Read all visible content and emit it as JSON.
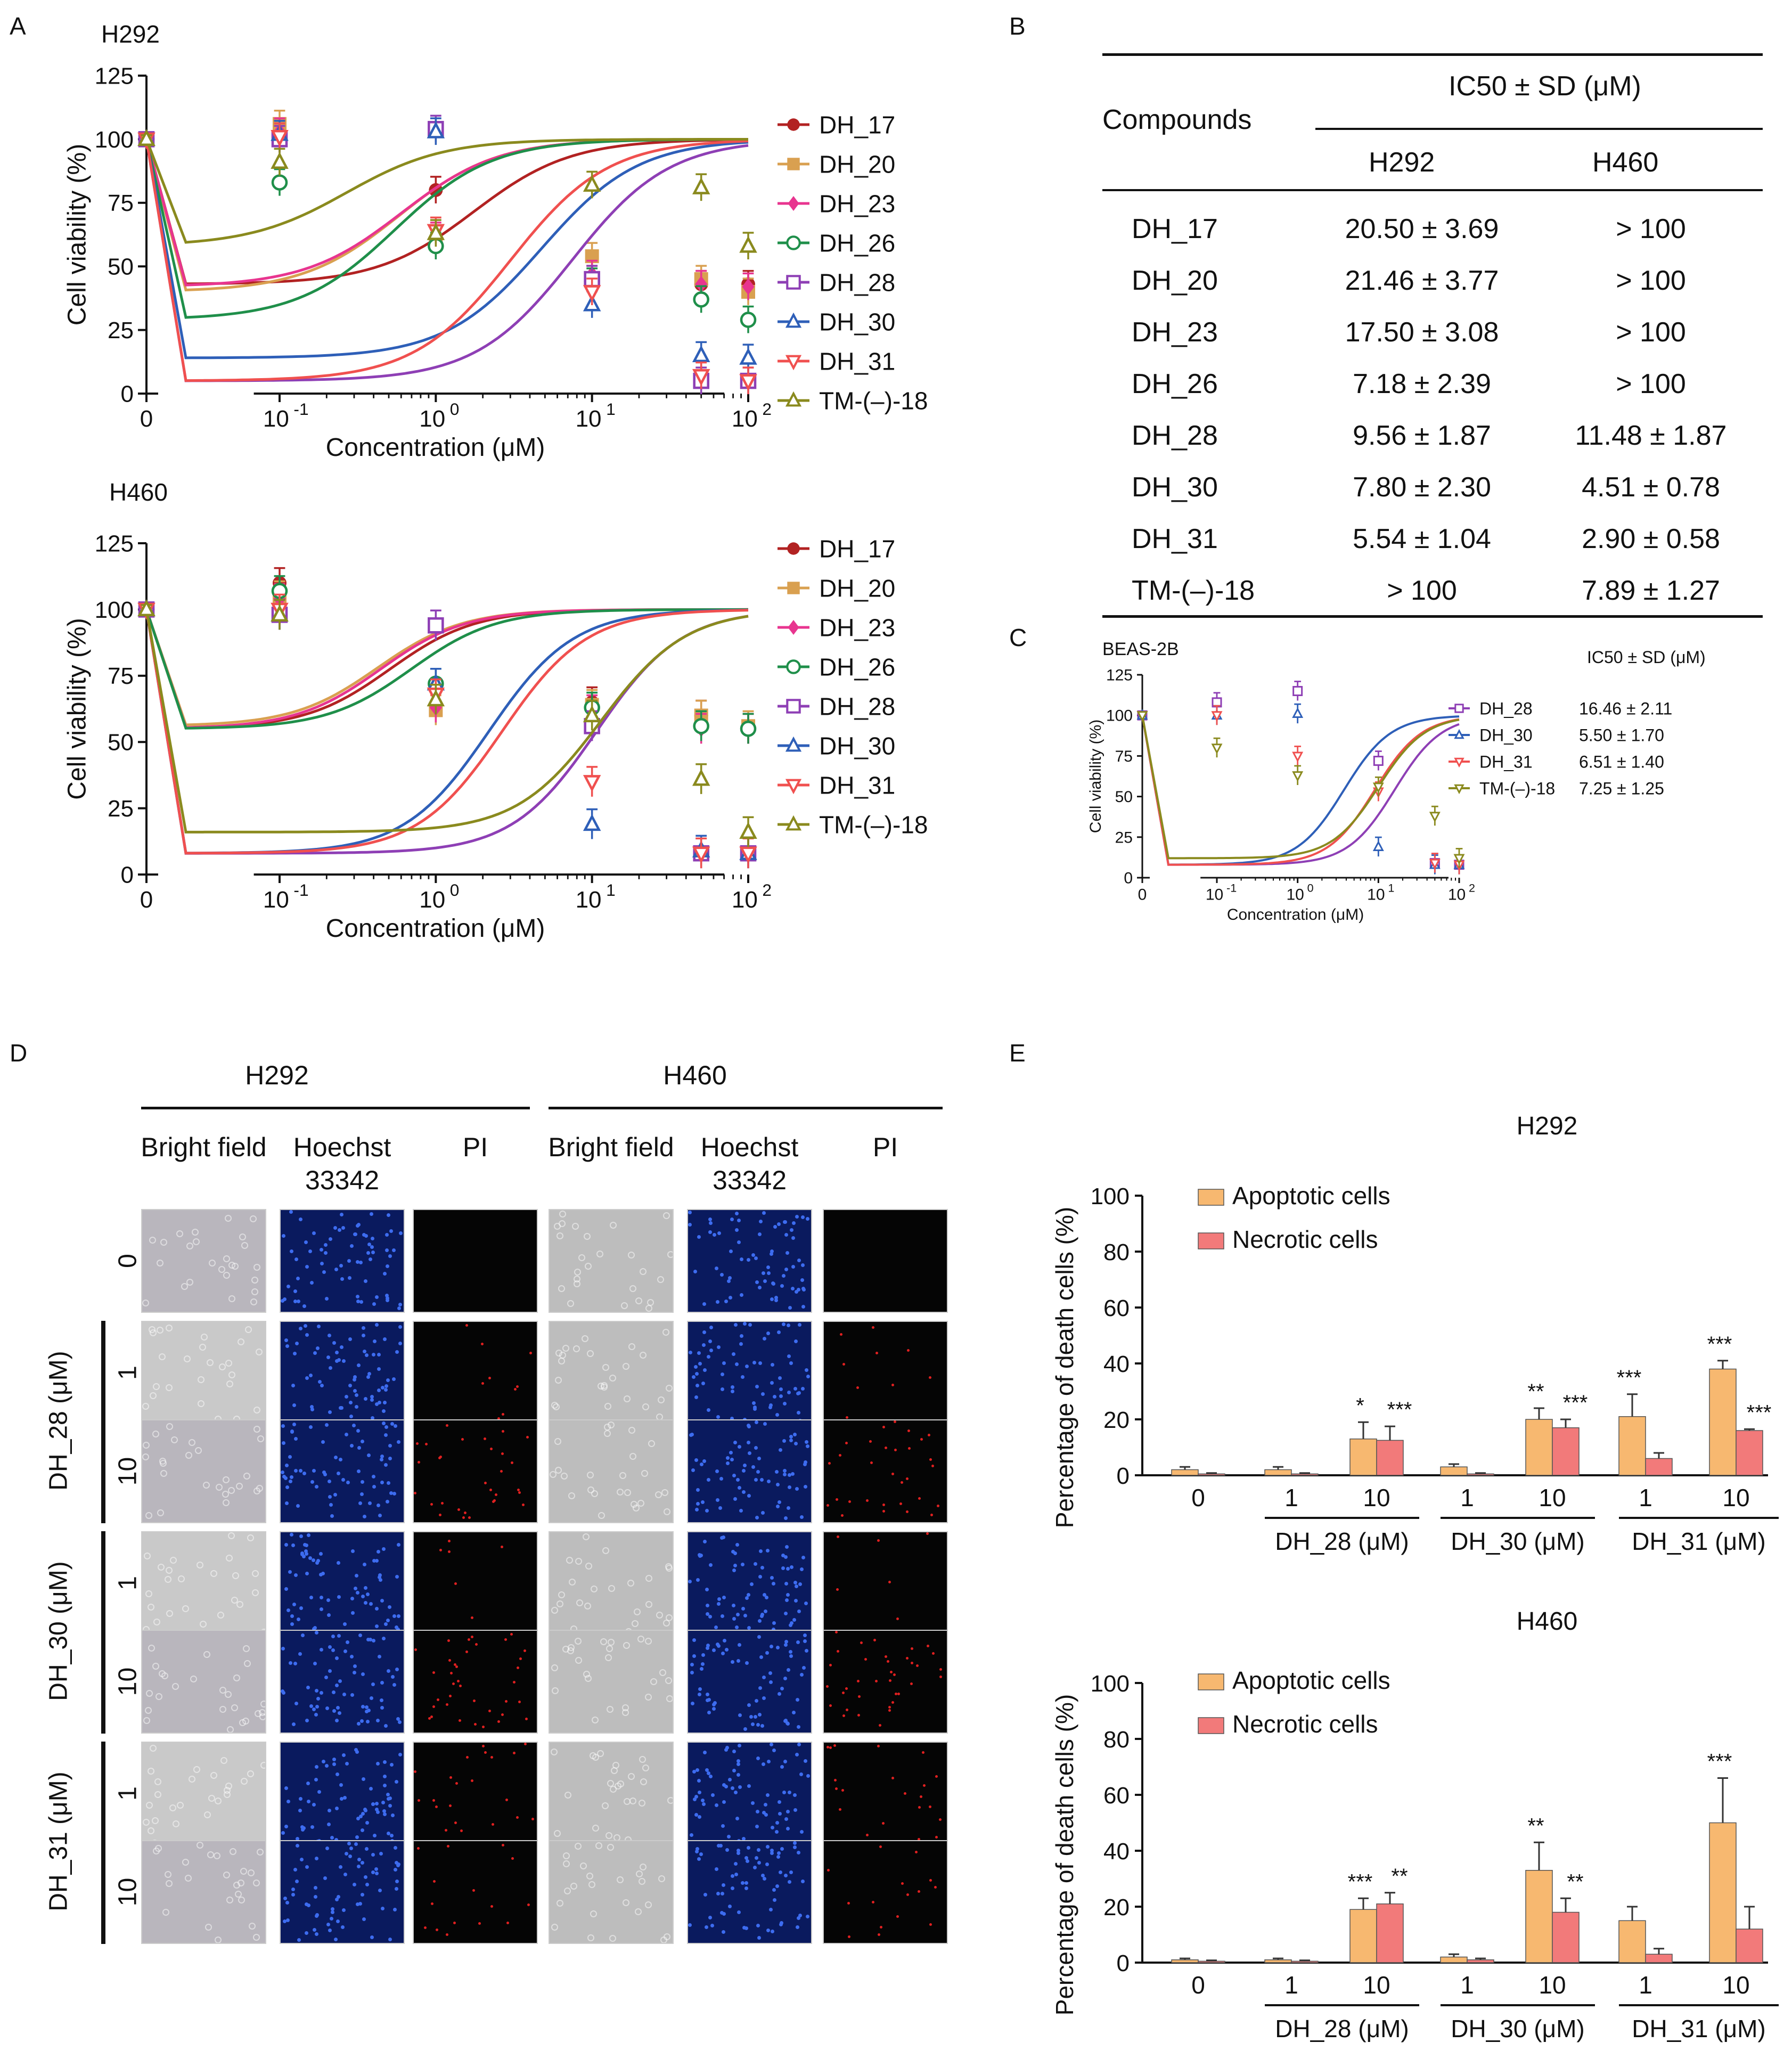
{
  "panels": {
    "a": "A",
    "b": "B",
    "c": "C",
    "d": "D",
    "e": "E"
  },
  "compound_colors": {
    "DH_17": "#b22222",
    "DH_20": "#d9a050",
    "DH_23": "#e8358f",
    "DH_26": "#1f8f4a",
    "DH_28": "#8e3fb5",
    "DH_30": "#2e5fb8",
    "DH_31": "#f0504f",
    "TM-(-)-18": "#8a8a1e"
  },
  "chart_data": [
    {
      "id": "h292_viability",
      "type": "line",
      "title": "H292",
      "xlabel": "Concentration (μM)",
      "ylabel": "Cell viability (%)",
      "x_ticks": [
        "0",
        "10-1",
        "100",
        "101",
        "102"
      ],
      "ylim": [
        0,
        125
      ],
      "y_ticks": [
        0,
        25,
        50,
        75,
        100,
        125
      ],
      "x": [
        0,
        0.1,
        1,
        10,
        50,
        100
      ],
      "series": [
        {
          "name": "DH_17",
          "marker": "circle",
          "values": [
            100,
            100,
            80,
            45,
            43,
            43
          ]
        },
        {
          "name": "DH_20",
          "marker": "square",
          "values": [
            100,
            106,
            59,
            54,
            45,
            40
          ]
        },
        {
          "name": "DH_23",
          "marker": "diamond",
          "values": [
            100,
            103,
            62,
            47,
            43,
            42
          ]
        },
        {
          "name": "DH_26",
          "marker": "open-circle",
          "values": [
            100,
            83,
            58,
            44,
            37,
            29
          ]
        },
        {
          "name": "DH_28",
          "marker": "open-square",
          "values": [
            100,
            100,
            104,
            45,
            5,
            5
          ]
        },
        {
          "name": "DH_30",
          "marker": "open-triangle",
          "values": [
            100,
            102,
            103,
            35,
            15,
            14
          ]
        },
        {
          "name": "DH_31",
          "marker": "open-triangle-down",
          "values": [
            100,
            101,
            64,
            40,
            7,
            5
          ]
        },
        {
          "name": "TM-(–)-18",
          "marker": "open-triangle",
          "values": [
            100,
            91,
            63,
            82,
            81,
            58
          ]
        }
      ]
    },
    {
      "id": "h460_viability",
      "type": "line",
      "title": "H460",
      "xlabel": "Concentration (μM)",
      "ylabel": "Cell viability (%)",
      "x_ticks": [
        "0",
        "10-1",
        "100",
        "101",
        "102"
      ],
      "ylim": [
        0,
        125
      ],
      "y_ticks": [
        0,
        25,
        50,
        75,
        100,
        125
      ],
      "x": [
        0,
        0.1,
        1,
        10,
        50,
        100
      ],
      "series": [
        {
          "name": "DH_17",
          "marker": "circle",
          "values": [
            100,
            110,
            64,
            65,
            60,
            55
          ]
        },
        {
          "name": "DH_20",
          "marker": "square",
          "values": [
            100,
            105,
            62,
            64,
            60,
            56
          ]
        },
        {
          "name": "DH_23",
          "marker": "diamond",
          "values": [
            100,
            104,
            63,
            62,
            55,
            55
          ]
        },
        {
          "name": "DH_26",
          "marker": "open-circle",
          "values": [
            100,
            107,
            72,
            63,
            56,
            55
          ]
        },
        {
          "name": "DH_28",
          "marker": "open-square",
          "values": [
            100,
            98,
            94,
            56,
            8,
            8
          ]
        },
        {
          "name": "DH_30",
          "marker": "open-triangle",
          "values": [
            100,
            98,
            72,
            19,
            9,
            8
          ]
        },
        {
          "name": "DH_31",
          "marker": "open-triangle-down",
          "values": [
            100,
            100,
            68,
            35,
            8,
            8
          ]
        },
        {
          "name": "TM-(–)-18",
          "marker": "open-triangle",
          "values": [
            100,
            98,
            66,
            60,
            36,
            16
          ]
        }
      ]
    },
    {
      "id": "beas2b_viability",
      "type": "line",
      "title": "BEAS-2B",
      "xlabel": "Concentration (μM)",
      "ylabel": "Cell viability (%)",
      "x_ticks": [
        "0",
        "10-1",
        "100",
        "101",
        "102"
      ],
      "ylim": [
        0,
        125
      ],
      "y_ticks": [
        0,
        25,
        50,
        75,
        100,
        125
      ],
      "x": [
        0,
        0.1,
        1,
        10,
        50,
        100
      ],
      "legend_header": "IC50 ± SD (μM)",
      "series": [
        {
          "name": "DH_28",
          "ic50": "16.46 ± 2.11",
          "marker": "open-square",
          "values": [
            100,
            108,
            115,
            72,
            9,
            8
          ]
        },
        {
          "name": "DH_30",
          "ic50": "5.50 ± 1.70",
          "marker": "open-triangle",
          "values": [
            100,
            100,
            101,
            19,
            8,
            8
          ]
        },
        {
          "name": "DH_31",
          "ic50": "6.51 ± 1.40",
          "marker": "open-triangle-down",
          "values": [
            100,
            100,
            75,
            53,
            9,
            8
          ]
        },
        {
          "name": "TM-(–)-18",
          "ic50": "7.25 ± 1.25",
          "marker": "open-triangle-down",
          "values": [
            100,
            80,
            63,
            56,
            38,
            12
          ]
        }
      ]
    },
    {
      "id": "h292_death",
      "type": "bar",
      "title": "H292",
      "ylabel": "Percentage of death cells (%)",
      "ylim": [
        0,
        100
      ],
      "y_ticks": [
        0,
        20,
        40,
        60,
        80,
        100
      ],
      "categories": [
        "0",
        "1",
        "10",
        "1",
        "10",
        "1",
        "10"
      ],
      "groups": [
        {
          "label": "DH_28 (μM)"
        },
        {
          "label": "DH_30 (μM)"
        },
        {
          "label": "DH_31 (μM)"
        }
      ],
      "series": [
        {
          "name": "Apoptotic cells",
          "color": "#f7b870",
          "values": [
            2,
            2,
            13,
            3,
            20,
            21,
            38
          ],
          "errors": [
            1,
            1,
            6,
            1,
            4,
            8,
            3
          ]
        },
        {
          "name": "Necrotic cells",
          "color": "#f27a7a",
          "values": [
            0.5,
            0.5,
            12.5,
            0.5,
            17,
            6,
            16
          ],
          "errors": [
            0.3,
            0.3,
            5,
            0.3,
            3,
            2,
            0.5
          ]
        }
      ],
      "significance": [
        {
          "category": 2,
          "series": 0,
          "text": "*"
        },
        {
          "category": 2,
          "series": 1,
          "text": "***"
        },
        {
          "category": 4,
          "series": 0,
          "text": "**"
        },
        {
          "category": 4,
          "series": 1,
          "text": "***"
        },
        {
          "category": 5,
          "series": 0,
          "text": "***"
        },
        {
          "category": 6,
          "series": 0,
          "text": "***"
        },
        {
          "category": 6,
          "series": 1,
          "text": "***"
        }
      ]
    },
    {
      "id": "h460_death",
      "type": "bar",
      "title": "H460",
      "ylabel": "Percentage of death cells (%)",
      "ylim": [
        0,
        100
      ],
      "y_ticks": [
        0,
        20,
        40,
        60,
        80,
        100
      ],
      "categories": [
        "0",
        "1",
        "10",
        "1",
        "10",
        "1",
        "10"
      ],
      "groups": [
        {
          "label": "DH_28 (μM)"
        },
        {
          "label": "DH_30 (μM)"
        },
        {
          "label": "DH_31 (μM)"
        }
      ],
      "series": [
        {
          "name": "Apoptotic cells",
          "color": "#f7b870",
          "values": [
            1,
            1,
            19,
            2,
            33,
            15,
            50
          ],
          "errors": [
            0.5,
            0.5,
            4,
            1,
            10,
            5,
            16
          ]
        },
        {
          "name": "Necrotic cells",
          "color": "#f27a7a",
          "values": [
            0.5,
            0.5,
            21,
            1,
            18,
            3,
            12
          ],
          "errors": [
            0.3,
            0.3,
            4,
            0.5,
            5,
            2,
            8
          ]
        }
      ],
      "significance": [
        {
          "category": 2,
          "series": 0,
          "text": "***"
        },
        {
          "category": 2,
          "series": 1,
          "text": "**"
        },
        {
          "category": 4,
          "series": 0,
          "text": "**"
        },
        {
          "category": 4,
          "series": 1,
          "text": "**"
        },
        {
          "category": 6,
          "series": 0,
          "text": "***"
        }
      ]
    }
  ],
  "ic50_table": {
    "header_compounds": "Compounds",
    "header_ic50": "IC50 ± SD (μM)",
    "col_h292": "H292",
    "col_h460": "H460",
    "rows": [
      {
        "compound": "DH_17",
        "h292": "20.50 ± 3.69",
        "h460": "> 100"
      },
      {
        "compound": "DH_20",
        "h292": "21.46 ± 3.77",
        "h460": "> 100"
      },
      {
        "compound": "DH_23",
        "h292": "17.50 ± 3.08",
        "h460": "> 100"
      },
      {
        "compound": "DH_26",
        "h292": "7.18 ± 2.39",
        "h460": "> 100"
      },
      {
        "compound": "DH_28",
        "h292": "9.56 ± 1.87",
        "h460": "11.48 ± 1.87"
      },
      {
        "compound": "DH_30",
        "h292": "7.80 ± 2.30",
        "h460": "4.51 ± 0.78"
      },
      {
        "compound": "DH_31",
        "h292": "5.54 ± 1.04",
        "h460": "2.90 ± 0.58"
      },
      {
        "compound": "TM-(–)-18",
        "h292": "> 100",
        "h460": "7.89 ± 1.27"
      }
    ]
  },
  "microscopy": {
    "cell_lines": [
      "H292",
      "H460"
    ],
    "columns": [
      "Bright field",
      "Hoechst 33342",
      "PI"
    ],
    "treatments": [
      {
        "group": "",
        "dose": "0"
      },
      {
        "group": "DH_28 (μM)",
        "dose": "1"
      },
      {
        "group": "DH_28 (μM)",
        "dose": "10"
      },
      {
        "group": "DH_30 (μM)",
        "dose": "1"
      },
      {
        "group": "DH_30 (μM)",
        "dose": "10"
      },
      {
        "group": "DH_31 (μM)",
        "dose": "1"
      },
      {
        "group": "DH_31 (μM)",
        "dose": "10"
      }
    ],
    "pi_levels": [
      0,
      0.15,
      0.5,
      0.1,
      0.6,
      0.35,
      0.25
    ]
  }
}
